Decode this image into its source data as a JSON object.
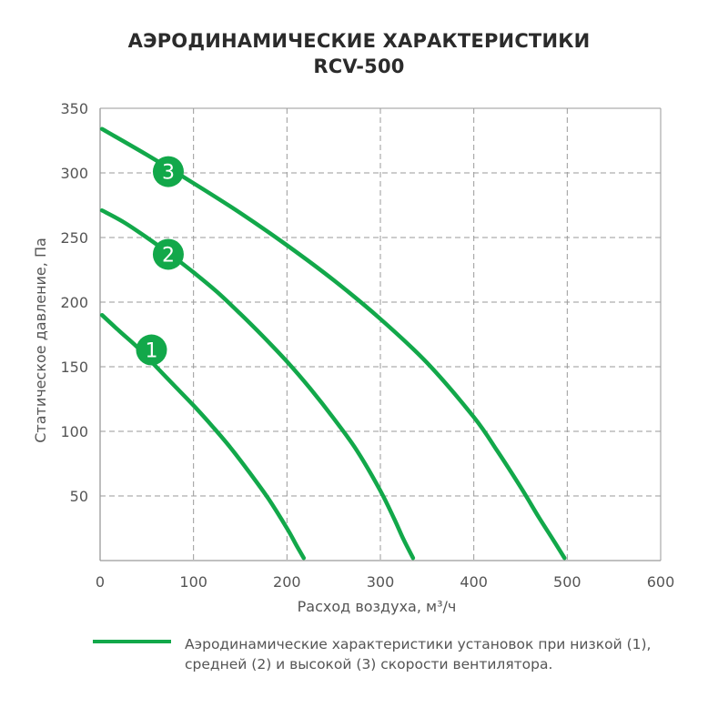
{
  "title": {
    "line1": "АЭРОДИНАМИЧЕСКИЕ ХАРАКТЕРИСТИКИ",
    "line2": "RCV-500"
  },
  "legend": {
    "text": "Аэродинамические характеристики установок при низкой (1), средней (2) и высокой (3) скорости вентилятора."
  },
  "colors": {
    "curve": "#12a84a",
    "grid": "#9a9a9a",
    "axis_text": "#555555"
  },
  "chart_data": {
    "type": "line",
    "title": "АЭРОДИНАМИЧЕСКИЕ ХАРАКТЕРИСТИКИ RCV-500",
    "xlabel": "Расход воздуха, м³/ч",
    "ylabel": "Статическое давление, Па",
    "xlim": [
      0,
      600
    ],
    "ylim": [
      0,
      350
    ],
    "xticks": [
      "0",
      "100",
      "200",
      "300",
      "400",
      "500",
      "600"
    ],
    "yticks": [
      "50",
      "100",
      "150",
      "200",
      "250",
      "300",
      "350"
    ],
    "grid": true,
    "series": [
      {
        "name": "1",
        "x": [
          2,
          20,
          40,
          60,
          80,
          100,
          120,
          140,
          160,
          180,
          200,
          210,
          218
        ],
        "y": [
          190,
          178,
          165,
          150,
          135,
          120,
          104,
          87,
          68,
          48,
          25,
          12,
          2
        ]
      },
      {
        "name": "2",
        "x": [
          2,
          25,
          50,
          75,
          100,
          125,
          150,
          175,
          200,
          225,
          250,
          275,
          300,
          315,
          325,
          335
        ],
        "y": [
          271,
          262,
          250,
          237,
          223,
          208,
          191,
          173,
          154,
          133,
          110,
          85,
          54,
          32,
          16,
          2
        ]
      },
      {
        "name": "3",
        "x": [
          2,
          50,
          100,
          150,
          200,
          250,
          300,
          350,
          400,
          425,
          450,
          470,
          485,
          497
        ],
        "y": [
          334,
          314,
          292,
          269,
          244,
          217,
          187,
          153,
          111,
          85,
          57,
          33,
          16,
          2
        ]
      }
    ],
    "markers": [
      {
        "label": "1",
        "x": 55,
        "y": 163
      },
      {
        "label": "2",
        "x": 73,
        "y": 237
      },
      {
        "label": "3",
        "x": 73,
        "y": 301
      }
    ]
  }
}
